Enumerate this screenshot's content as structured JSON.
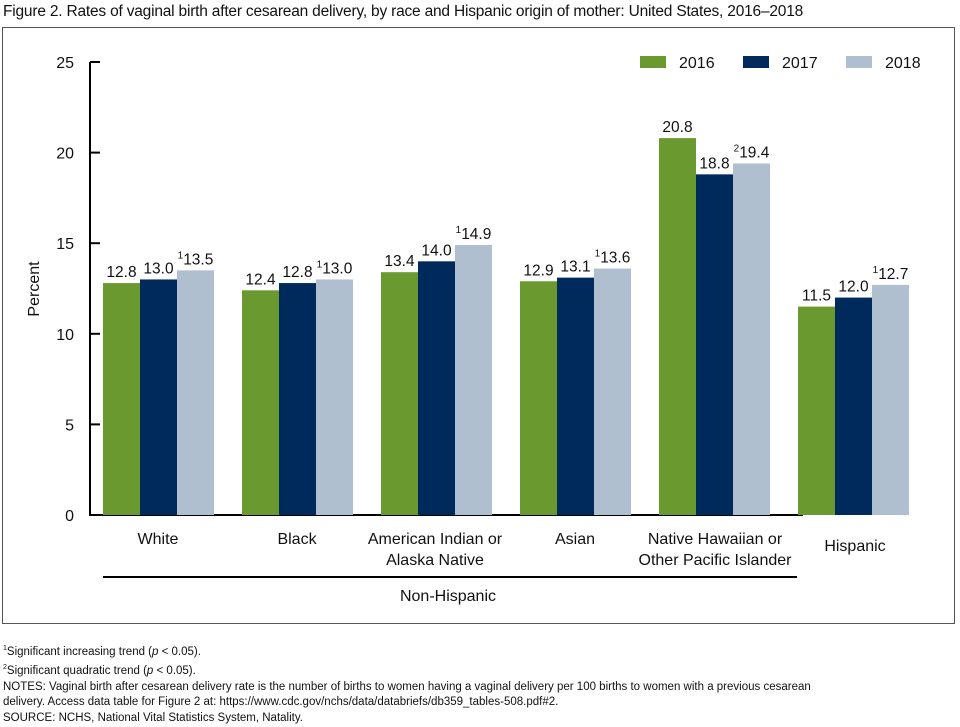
{
  "title": "Figure 2. Rates of vaginal birth after cesarean delivery, by race and Hispanic origin of mother: United States, 2016–2018",
  "chart_data": {
    "type": "bar",
    "title": "Figure 2. Rates of vaginal birth after cesarean delivery, by race and Hispanic origin of mother: United States, 2016–2018",
    "xlabel": "",
    "ylabel": "Percent",
    "ylim": [
      0,
      25
    ],
    "yticks": [
      0,
      5,
      10,
      15,
      20,
      25
    ],
    "grid": false,
    "legend_position": "top-right",
    "categories": [
      "White",
      "Black",
      "American Indian or Alaska Native",
      "Asian",
      "Native Hawaiian or Other Pacific Islander",
      "Hispanic"
    ],
    "category_lines": [
      [
        "White"
      ],
      [
        "Black"
      ],
      [
        "American Indian or",
        "Alaska Native"
      ],
      [
        "Asian"
      ],
      [
        "Native Hawaiian or",
        "Other Pacific Islander"
      ],
      [
        "Hispanic"
      ]
    ],
    "group_label": "Non-Hispanic",
    "series": [
      {
        "name": "2016",
        "color": "#6a9a2f",
        "values": [
          12.8,
          12.4,
          13.4,
          12.9,
          20.8,
          11.5
        ],
        "notes": [
          "",
          "",
          "",
          "",
          "",
          ""
        ]
      },
      {
        "name": "2017",
        "color": "#002a5c",
        "values": [
          13.0,
          12.8,
          14.0,
          13.1,
          18.8,
          12.0
        ],
        "notes": [
          "",
          "",
          "",
          "",
          "",
          ""
        ]
      },
      {
        "name": "2018",
        "color": "#b0bfd0",
        "values": [
          13.5,
          13.0,
          14.9,
          13.6,
          19.4,
          12.7
        ],
        "notes": [
          "1",
          "1",
          "1",
          "1",
          "2",
          "1"
        ]
      }
    ]
  },
  "footnotes": [
    {
      "sup": "1",
      "text": "Significant increasing trend (",
      "ital": "p",
      "rest": " < 0.05)."
    },
    {
      "sup": "2",
      "text": "Significant quadratic trend (",
      "ital": "p",
      "rest": " < 0.05)."
    }
  ],
  "notes_line1": "NOTES: Vaginal birth after cesarean delivery rate is the number of births to women having a vaginal delivery per 100 births to women with a previous cesarean",
  "notes_line2": "delivery. Access data table for Figure 2 at: https://www.cdc.gov/nchs/data/databriefs/db359_tables-508.pdf#2.",
  "source": "SOURCE: NCHS, National Vital Statistics System, Natality."
}
